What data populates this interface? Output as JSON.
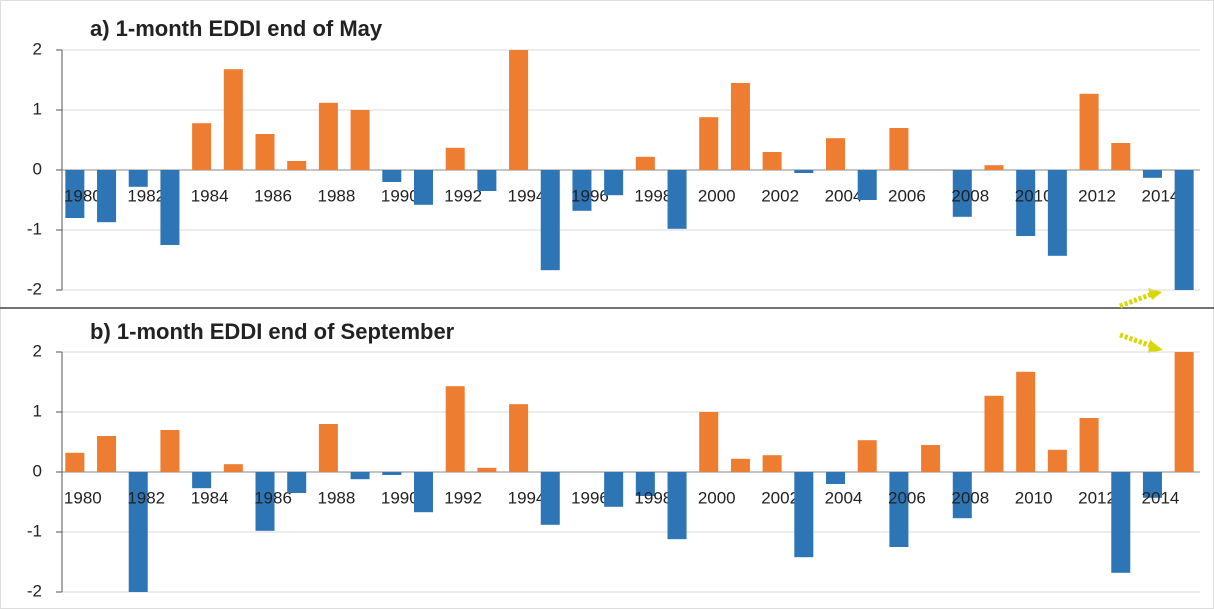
{
  "chart_data": [
    {
      "type": "bar",
      "title": "a) 1-month EDDI end of May",
      "categories": [
        "1980",
        null,
        "1982",
        null,
        "1984",
        null,
        "1986",
        null,
        "1988",
        null,
        "1990",
        null,
        "1992",
        null,
        "1994",
        null,
        "1996",
        null,
        "1998",
        null,
        "2000",
        null,
        "2002",
        null,
        "2004",
        null,
        "2006",
        null,
        "2008",
        null,
        "2010",
        null,
        "2012",
        null,
        "2014",
        null
      ],
      "values": [
        -0.8,
        -0.87,
        -0.28,
        -1.25,
        0.78,
        1.68,
        0.6,
        0.15,
        1.12,
        1.0,
        -0.2,
        -0.58,
        0.37,
        -0.35,
        2.0,
        -1.67,
        -0.68,
        -0.42,
        0.22,
        -0.98,
        0.88,
        1.45,
        0.3,
        -0.05,
        0.53,
        -0.5,
        0.7,
        0,
        -0.78,
        0.08,
        -1.1,
        -1.43,
        1.27,
        0.45,
        -0.13,
        -2.0
      ],
      "positive_color": "#ed7d31",
      "negative_color": "#2e75b6",
      "ylim": [
        -2,
        2
      ],
      "yticks": [
        -2,
        -1,
        0,
        1,
        2
      ],
      "grid": true
    },
    {
      "type": "bar",
      "title": "b) 1-month EDDI end of September",
      "categories": [
        "1980",
        null,
        "1982",
        null,
        "1984",
        null,
        "1986",
        null,
        "1988",
        null,
        "1990",
        null,
        "1992",
        null,
        "1994",
        null,
        "1996",
        null,
        "1998",
        null,
        "2000",
        null,
        "2002",
        null,
        "2004",
        null,
        "2006",
        null,
        "2008",
        null,
        "2010",
        null,
        "2012",
        null,
        "2014",
        null
      ],
      "values": [
        0.32,
        0.6,
        -2.0,
        0.7,
        -0.27,
        0.13,
        -0.98,
        -0.35,
        0.8,
        -0.12,
        -0.05,
        -0.67,
        1.43,
        0.07,
        1.13,
        -0.88,
        0,
        -0.58,
        -0.4,
        -1.12,
        1.0,
        0.22,
        0.28,
        -1.42,
        -0.2,
        0.53,
        -1.25,
        0.45,
        -0.77,
        1.27,
        1.67,
        0.37,
        0.9,
        -1.68,
        -0.43,
        2.0
      ],
      "positive_color": "#ed7d31",
      "negative_color": "#2e75b6",
      "ylim": [
        -2,
        2
      ],
      "yticks": [
        -2,
        -1,
        0,
        1,
        2
      ],
      "grid": true
    }
  ]
}
